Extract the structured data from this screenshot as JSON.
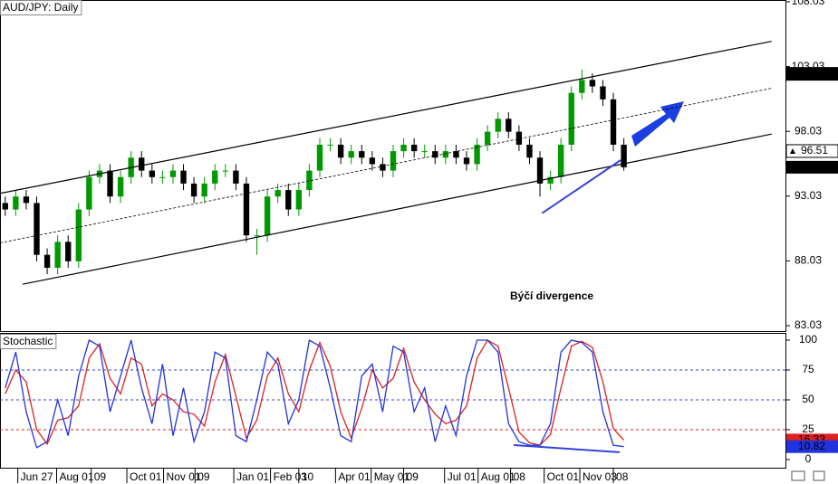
{
  "chart_data": [
    {
      "type": "candlestick",
      "title": "AUD/JPY: Daily",
      "xlim": [
        -0.5,
        74.5
      ],
      "ylim": [
        82.54,
        108.17
      ],
      "yticks": [
        83.03,
        88.03,
        93.03,
        98.03,
        103.03,
        108.03
      ],
      "up_color": "#009900",
      "down_color": "#000000",
      "ohlc": [
        [
          92.5,
          93,
          91.5,
          92
        ],
        [
          92,
          93.5,
          91.5,
          93
        ],
        [
          93,
          93.5,
          92,
          92.5
        ],
        [
          92.5,
          93,
          88,
          88.5
        ],
        [
          88.5,
          89,
          87,
          87.5
        ],
        [
          87.5,
          90,
          87,
          89.5
        ],
        [
          89.5,
          90,
          87.5,
          88
        ],
        [
          88,
          92.5,
          87.5,
          92
        ],
        [
          92,
          95,
          91.5,
          94.5
        ],
        [
          94.5,
          95.5,
          94,
          95
        ],
        [
          95,
          95.5,
          92.5,
          93
        ],
        [
          93,
          95,
          92.5,
          94.5
        ],
        [
          94.5,
          96.5,
          94,
          96
        ],
        [
          96,
          96.5,
          94.5,
          95
        ],
        [
          95,
          95.5,
          94,
          94.5
        ],
        [
          94.5,
          95,
          94,
          94.5
        ],
        [
          94.5,
          95.5,
          94,
          95
        ],
        [
          95,
          95.5,
          93.5,
          94
        ],
        [
          94,
          94.5,
          92.5,
          93
        ],
        [
          93,
          94.5,
          92.5,
          94
        ],
        [
          94,
          95.5,
          93.5,
          95
        ],
        [
          95,
          95.5,
          94.5,
          95
        ],
        [
          95,
          95.5,
          93.5,
          94
        ],
        [
          94,
          94.5,
          89.5,
          90
        ],
        [
          90,
          90.5,
          88.5,
          90
        ],
        [
          90,
          93.5,
          89.5,
          93
        ],
        [
          93,
          94,
          92.5,
          93.5
        ],
        [
          93.5,
          94,
          91.5,
          92
        ],
        [
          92,
          94,
          91.5,
          93.5
        ],
        [
          93.5,
          95.5,
          93,
          95
        ],
        [
          95,
          97.5,
          94.5,
          97
        ],
        [
          97,
          97.5,
          96.5,
          97
        ],
        [
          97,
          97.5,
          95.5,
          96
        ],
        [
          96,
          97,
          95.5,
          96.5
        ],
        [
          96.5,
          97,
          95.5,
          96
        ],
        [
          96,
          96.5,
          95,
          95.5
        ],
        [
          95.5,
          96,
          94.5,
          95
        ],
        [
          95,
          97,
          94.5,
          96.5
        ],
        [
          96.5,
          97.5,
          96,
          97
        ],
        [
          97,
          97.5,
          96,
          96.5
        ],
        [
          96.5,
          97,
          96,
          96.5
        ],
        [
          96.5,
          97,
          95.5,
          96
        ],
        [
          96,
          97,
          95.5,
          96.5
        ],
        [
          96.5,
          97,
          95.5,
          96
        ],
        [
          96,
          96.5,
          95,
          95.5
        ],
        [
          95.5,
          97.5,
          95,
          97
        ],
        [
          97,
          98.5,
          96.5,
          98
        ],
        [
          98,
          99.5,
          97.5,
          99
        ],
        [
          99,
          99.5,
          97.5,
          98
        ],
        [
          98,
          98.5,
          96.5,
          97
        ],
        [
          97,
          97.5,
          95.5,
          96
        ],
        [
          96,
          96.5,
          93,
          94
        ],
        [
          94,
          95,
          93.5,
          94.5
        ],
        [
          94.5,
          97.5,
          94,
          97
        ],
        [
          97,
          101.5,
          96.5,
          101
        ],
        [
          101,
          102.8,
          100.5,
          102
        ],
        [
          102,
          102.5,
          101,
          101.5
        ],
        [
          101.5,
          102,
          100,
          100.5
        ],
        [
          100.5,
          101,
          96.5,
          97
        ],
        [
          97,
          97.5,
          95,
          95.26
        ]
      ],
      "lines": [
        {
          "x": [
            -0.5,
            73.1
          ],
          "y": [
            93.24,
            104.98
          ],
          "color": "#000000",
          "dashed": false
        },
        {
          "x": [
            1.66,
            73.1
          ],
          "y": [
            86.23,
            97.82
          ],
          "color": "#000000",
          "dashed": false
        },
        {
          "x": [
            -0.5,
            73.1
          ],
          "y": [
            89.42,
            101.36
          ],
          "color": "#000000",
          "dashed": true
        },
        {
          "x": [
            51.2,
            58.7
          ],
          "y": [
            91.71,
            95.81
          ],
          "color": "#3344dd",
          "dashed": false
        }
      ],
      "annotation": "Býčí divergence",
      "price_labels": [
        {
          "value": 102.47,
          "style": "filled"
        },
        {
          "value": 96.51,
          "style": "marker"
        }
      ]
    },
    {
      "type": "line",
      "title": "Stochastic",
      "xlim": [
        -0.5,
        74.5
      ],
      "ylim": [
        -7.6,
        105.3
      ],
      "yticks": [
        0,
        25,
        50,
        75,
        100
      ],
      "xticks": [
        {
          "value": 1.2,
          "label": "Jun 27"
        },
        {
          "value": 4.9,
          "label": "Aug 01"
        },
        {
          "value": 8.2,
          "label": "09"
        },
        {
          "value": 11.6,
          "label": "Oct 01"
        },
        {
          "value": 15.1,
          "label": "Nov 01"
        },
        {
          "value": 18.1,
          "label": "09"
        },
        {
          "value": 21.8,
          "label": "Jan 01"
        },
        {
          "value": 25.3,
          "label": "Feb 03"
        },
        {
          "value": 28,
          "label": "10"
        },
        {
          "value": 31.5,
          "label": "Apr 01"
        },
        {
          "value": 34.9,
          "label": "May 01"
        },
        {
          "value": 38,
          "label": "09"
        },
        {
          "value": 41.9,
          "label": "Jul 01"
        },
        {
          "value": 45.1,
          "label": "Aug 01"
        },
        {
          "value": 48.2,
          "label": "08"
        },
        {
          "value": 51.4,
          "label": "Oct 01"
        },
        {
          "value": 54.8,
          "label": "Nov 03"
        },
        {
          "value": 58,
          "label": "08"
        }
      ],
      "levels": [
        {
          "value": 75,
          "color": "#3344cc"
        },
        {
          "value": 50,
          "color": "#3344cc"
        },
        {
          "value": 25,
          "color": "#dd2222"
        }
      ],
      "series": [
        {
          "color": "#dd2222",
          "values": [
            55,
            75,
            65,
            25,
            13,
            33,
            35,
            45,
            85,
            97,
            68,
            55,
            85,
            80,
            45,
            55,
            50,
            40,
            38,
            28,
            65,
            88,
            53,
            18,
            33,
            70,
            85,
            55,
            40,
            75,
            98,
            78,
            40,
            18,
            43,
            75,
            60,
            68,
            93,
            65,
            50,
            38,
            30,
            33,
            45,
            85,
            100,
            95,
            60,
            23,
            14,
            12,
            21,
            60,
            95,
            99,
            94,
            65,
            26,
            16.33
          ]
        },
        {
          "color": "#2233dd",
          "values": [
            60,
            90,
            40,
            10,
            15,
            50,
            20,
            70,
            100,
            95,
            40,
            70,
            100,
            60,
            30,
            80,
            20,
            60,
            15,
            40,
            90,
            85,
            20,
            15,
            50,
            90,
            80,
            30,
            50,
            100,
            95,
            60,
            20,
            15,
            70,
            80,
            40,
            95,
            90,
            40,
            60,
            15,
            45,
            20,
            70,
            100,
            100,
            90,
            30,
            15,
            12,
            12,
            30,
            90,
            100,
            98,
            90,
            40,
            12,
            10.82
          ]
        }
      ],
      "lines": [
        {
          "x": [
            48.5,
            58.6
          ],
          "y": [
            12.1,
            6.1
          ],
          "color": "#3344dd",
          "dashed": false
        }
      ]
    }
  ]
}
